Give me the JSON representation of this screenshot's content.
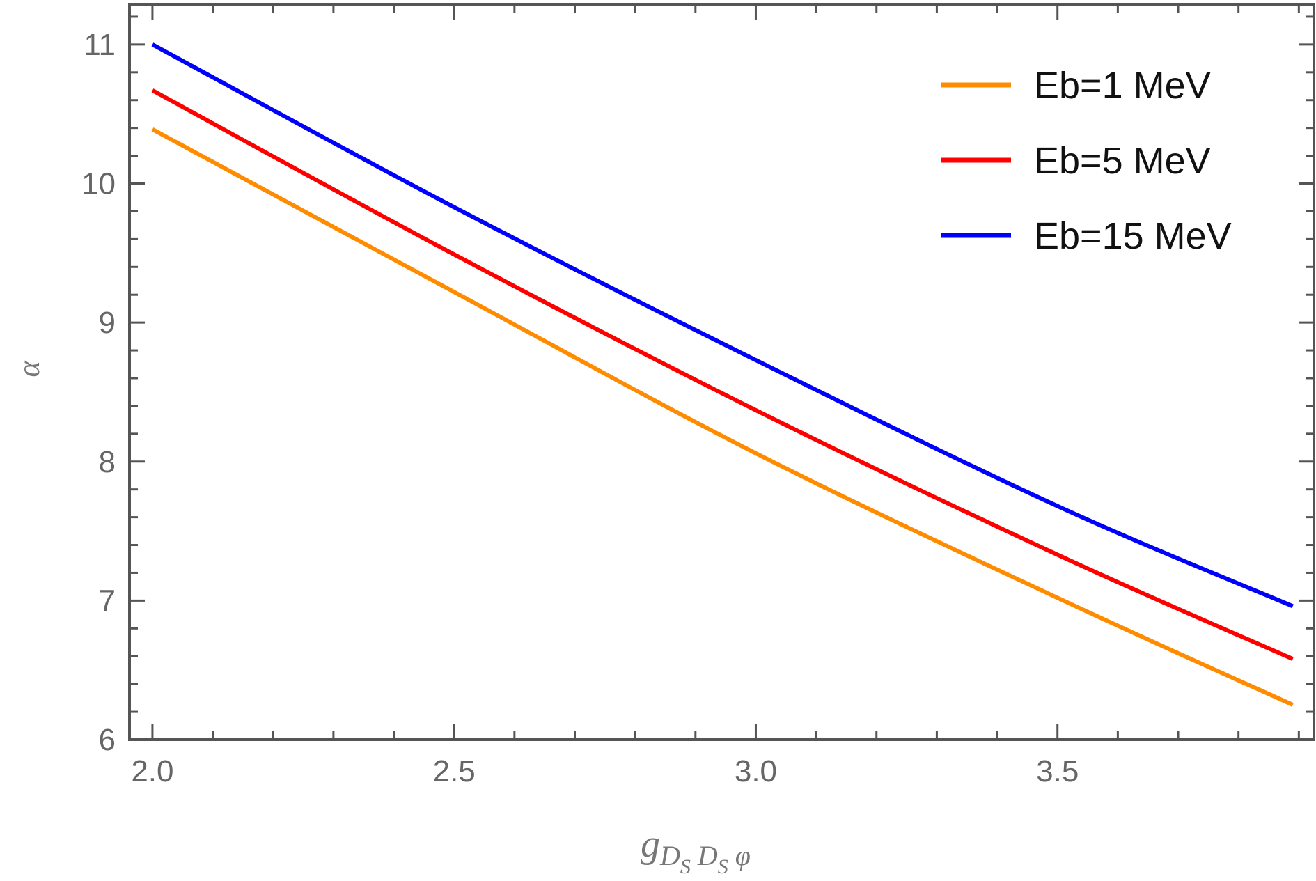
{
  "chart_data": {
    "type": "line",
    "title": "",
    "xlabel": "g_{Ds Ds φ}",
    "xlabel_parts": {
      "main": "g",
      "sub1": "D",
      "subsub1": "S",
      "sub2": "D",
      "subsub2": "S",
      "sub3": "φ"
    },
    "ylabel": "α",
    "xlim": [
      1.962,
      3.925
    ],
    "ylim": [
      6,
      11.29
    ],
    "x_ticks": [
      "2.0",
      "2.5",
      "3.0",
      "3.5"
    ],
    "y_ticks": [
      "6",
      "7",
      "8",
      "9",
      "10",
      "11"
    ],
    "grid": false,
    "legend_position": "top-right",
    "series": [
      {
        "name": "Eb=1 MeV",
        "color": "#FF8C00",
        "x": [
          2.0,
          2.5,
          3.0,
          3.5,
          3.89
        ],
        "y": [
          10.39,
          9.22,
          8.06,
          7.02,
          6.25
        ]
      },
      {
        "name": "Eb=5 MeV",
        "color": "#FF0000",
        "x": [
          2.0,
          2.5,
          3.0,
          3.5,
          3.89
        ],
        "y": [
          10.67,
          9.49,
          8.37,
          7.33,
          6.58
        ]
      },
      {
        "name": "Eb=15 MeV",
        "color": "#0000FF",
        "x": [
          2.0,
          2.5,
          3.0,
          3.5,
          3.89
        ],
        "y": [
          11.0,
          9.83,
          8.73,
          7.68,
          6.96
        ]
      }
    ]
  }
}
